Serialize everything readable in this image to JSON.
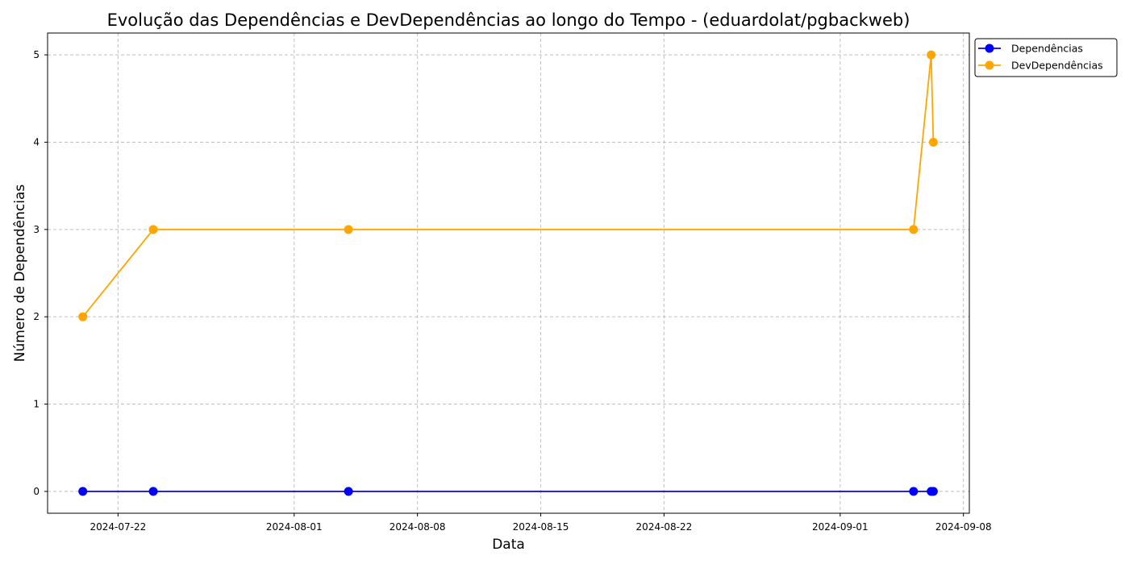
{
  "chart_data": {
    "type": "line",
    "title": "Evolução das Dependências e DevDependências ao longo do Tempo - (eduardolat/pgbackweb)",
    "xlabel": "Data",
    "ylabel": "Número de Dependências",
    "x_ticks": [
      "2024-07-22",
      "2024-08-01",
      "2024-08-08",
      "2024-08-15",
      "2024-08-22",
      "2024-09-01",
      "2024-09-08"
    ],
    "y_ticks": [
      0,
      1,
      2,
      3,
      4,
      5
    ],
    "xlim": [
      "2024-07-18T00:00",
      "2024-09-08T08:00"
    ],
    "ylim": [
      -0.25,
      5.25
    ],
    "grid": true,
    "legend_position": "outside-top-right",
    "series": [
      {
        "name": "Dependências",
        "color": "#0000ff",
        "points": [
          {
            "x": "2024-07-20T00:00",
            "y": 0
          },
          {
            "x": "2024-07-24T00:00",
            "y": 0
          },
          {
            "x": "2024-08-04T02:00",
            "y": 0
          },
          {
            "x": "2024-09-05T04:00",
            "y": 0
          },
          {
            "x": "2024-09-06T04:00",
            "y": 0
          },
          {
            "x": "2024-09-06T07:00",
            "y": 0
          }
        ]
      },
      {
        "name": "DevDependências",
        "color": "#ffa500",
        "points": [
          {
            "x": "2024-07-20T00:00",
            "y": 2
          },
          {
            "x": "2024-07-24T00:00",
            "y": 3
          },
          {
            "x": "2024-08-04T02:00",
            "y": 3
          },
          {
            "x": "2024-09-05T04:00",
            "y": 3
          },
          {
            "x": "2024-09-06T04:00",
            "y": 5
          },
          {
            "x": "2024-09-06T07:00",
            "y": 4
          }
        ]
      }
    ]
  }
}
